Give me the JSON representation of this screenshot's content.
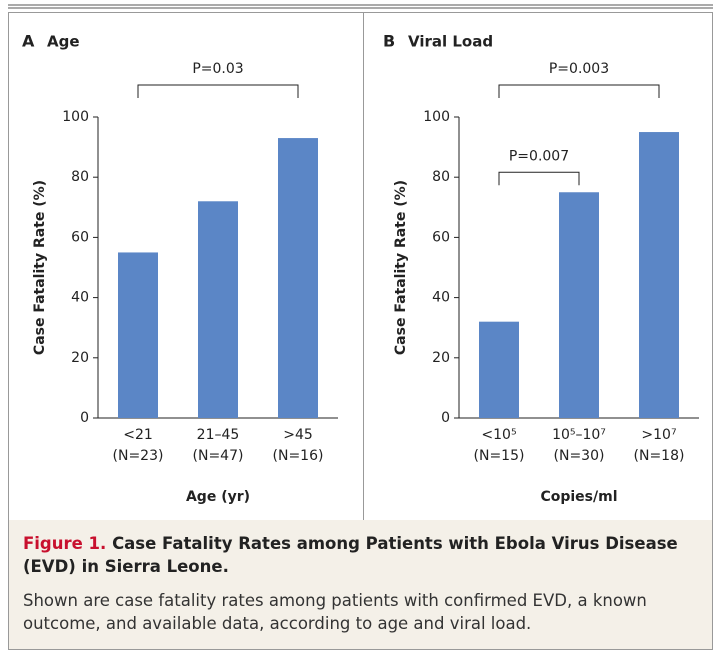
{
  "chart_data": [
    {
      "type": "bar",
      "panel": "A",
      "title": "Age",
      "categories": [
        "<21",
        "21–45",
        ">45"
      ],
      "n_labels": [
        "(N=23)",
        "(N=47)",
        "(N=16)"
      ],
      "values": [
        55,
        72,
        93
      ],
      "color": "#5b86c6",
      "ylim": [
        0,
        100
      ],
      "yticks": [
        0,
        20,
        40,
        60,
        80,
        100
      ],
      "ylabel": "Case Fatality Rate (%)",
      "xlabel": "Age (yr)",
      "comparisons": [
        {
          "label": "P=0.03",
          "from": 0,
          "to": 2
        }
      ]
    },
    {
      "type": "bar",
      "panel": "B",
      "title": "Viral Load",
      "categories": [
        "<10⁵",
        "10⁵–10⁷",
        ">10⁷"
      ],
      "n_labels": [
        "(N=15)",
        "(N=30)",
        "(N=18)"
      ],
      "values": [
        32,
        75,
        95
      ],
      "color": "#5b86c6",
      "ylim": [
        0,
        100
      ],
      "yticks": [
        0,
        20,
        40,
        60,
        80,
        100
      ],
      "ylabel": "Case Fatality Rate (%)",
      "xlabel": "Copies/ml",
      "comparisons": [
        {
          "label": "P=0.007",
          "from": 0,
          "to": 1
        },
        {
          "label": "P=0.003",
          "from": 0,
          "to": 2
        }
      ]
    }
  ],
  "caption": {
    "figure_label": "Figure 1.",
    "title": "Case Fatality Rates among Patients with Ebola Virus Disease (EVD) in Sierra Leone.",
    "body": "Shown are case fatality rates among patients with confirmed EVD, a known outcome, and available data, according to age and viral load."
  }
}
